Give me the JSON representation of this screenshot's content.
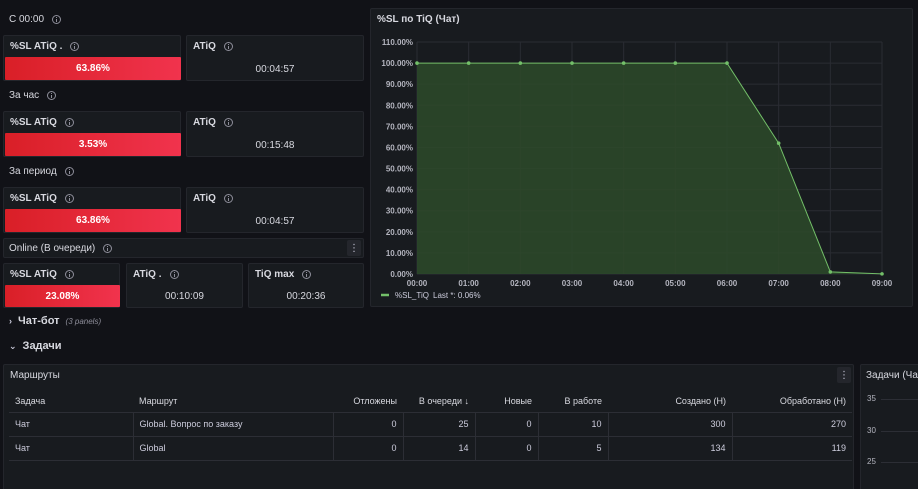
{
  "sections": {
    "since_midnight": "С 00:00",
    "last_hour": "За час",
    "period": "За период",
    "online": "Online (В очереди)"
  },
  "stats": {
    "row1": {
      "sl_title": "%SL ATiQ .",
      "sl_value": "63.86%",
      "sl_fraction": 0.6386,
      "atiq_title": "ATiQ",
      "atiq_value": "00:04:57"
    },
    "row2": {
      "sl_title": "%SL ATiQ",
      "sl_value": "3.53%",
      "sl_fraction": 0.0353,
      "atiq_title": "ATiQ",
      "atiq_value": "00:15:48"
    },
    "row3": {
      "sl_title": "%SL ATiQ",
      "sl_value": "63.86%",
      "sl_fraction": 0.6386,
      "atiq_title": "ATiQ",
      "atiq_value": "00:04:57"
    },
    "online": {
      "sl_title": "%SL ATiQ",
      "sl_value": "23.08%",
      "sl_fraction": 0.2308,
      "atiq_title": "ATiQ .",
      "atiq_value": "00:10:09",
      "tiq_title": "TiQ max",
      "tiq_value": "00:20:36"
    }
  },
  "menu_icon": "⋮",
  "rows": {
    "chatbot": {
      "title": "Чат-бот",
      "sub": "(3 panels)",
      "collapsed": true
    },
    "tasks": {
      "title": "Задачи",
      "collapsed": false
    }
  },
  "routes": {
    "title": "Маршруты",
    "columns": [
      "Задача",
      "Маршрут",
      "Отложены",
      "В очереди ↓",
      "Новые",
      "В работе",
      "Создано (Н)",
      "Обработано (Н)"
    ],
    "rows": [
      [
        "Чат",
        "Global. Вопрос по заказу",
        "0",
        "25",
        "0",
        "10",
        "300",
        "270"
      ],
      [
        "Чат",
        "Global",
        "0",
        "14",
        "0",
        "5",
        "134",
        "119"
      ]
    ]
  },
  "side_panel": {
    "title": "Задачи (Чат",
    "ticks": [
      "35",
      "30",
      "25"
    ]
  },
  "colors": {
    "accent_red": "#e8223a",
    "series_green": "#73bf69",
    "fill_green": "#2d4a2a"
  },
  "chart_data": {
    "type": "area",
    "title": "%SL по TiQ (Чат)",
    "x": [
      "00:00",
      "01:00",
      "02:00",
      "03:00",
      "04:00",
      "05:00",
      "06:00",
      "07:00",
      "08:00",
      "09:00"
    ],
    "series": [
      {
        "name": "%SL_TiQ",
        "values": [
          100,
          100,
          100,
          100,
          100,
          100,
          100,
          62,
          1,
          0.06
        ]
      }
    ],
    "y_ticks": [
      "0.00%",
      "10.00%",
      "20.00%",
      "30.00%",
      "40.00%",
      "50.00%",
      "60.00%",
      "70.00%",
      "80.00%",
      "90.00%",
      "100.00%",
      "110.00%"
    ],
    "ylim": [
      0,
      110
    ],
    "legend": {
      "label": "%SL_TiQ",
      "stat": "Last *: 0.06%",
      "position": "bottom-left"
    },
    "grid": true
  }
}
